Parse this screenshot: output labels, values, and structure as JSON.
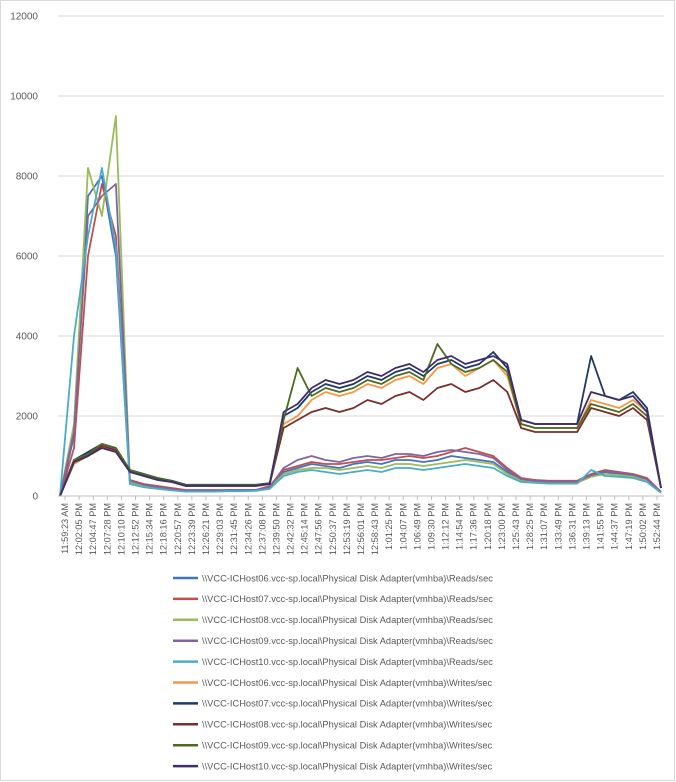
{
  "chart_data": {
    "type": "line",
    "title": "",
    "xlabel": "",
    "ylabel": "",
    "ylim": [
      0,
      12000
    ],
    "yticks": [
      0,
      2000,
      4000,
      6000,
      8000,
      10000,
      12000
    ],
    "ytick_labels": [
      "0",
      "2000",
      "4000",
      "6000",
      "8000",
      "10000",
      "12000"
    ],
    "grid": "horizontal",
    "legend_position": "bottom",
    "x_tick_labels": [
      "11:59:23 AM",
      "12:02:05 PM",
      "12:04:47 PM",
      "12:07:28 PM",
      "12:10:10 PM",
      "12:12:52 PM",
      "12:15:34 PM",
      "12:18:16 PM",
      "12:20:57 PM",
      "12:23:39 PM",
      "12:26:21 PM",
      "12:29:03 PM",
      "12:31:45 PM",
      "12:34:26 PM",
      "12:37:08 PM",
      "12:39:50 PM",
      "12:42:32 PM",
      "12:45:14 PM",
      "12:47:56 PM",
      "12:50:37 PM",
      "12:53:19 PM",
      "12:56:01 PM",
      "12:58:43 PM",
      "1:01:25 PM",
      "1:04:07 PM",
      "1:06:49 PM",
      "1:09:30 PM",
      "1:12:12 PM",
      "1:14:54 PM",
      "1:17:36 PM",
      "1:20:18 PM",
      "1:23:00 PM",
      "1:25:43 PM",
      "1:28:25 PM",
      "1:31:07 PM",
      "1:33:49 PM",
      "1:36:31 PM",
      "1:39:13 PM",
      "1:41:55 PM",
      "1:44:37 PM",
      "1:47:19 PM",
      "1:50:02 PM",
      "1:52:44 PM"
    ],
    "x_tick_indices": [
      0,
      1,
      2,
      3,
      4,
      5,
      6,
      7,
      8,
      9,
      10,
      11,
      12,
      13,
      14,
      15,
      16,
      17,
      18,
      19,
      20,
      21,
      22,
      23,
      24,
      25,
      26,
      27,
      28,
      29,
      30,
      31,
      32,
      33,
      34,
      35,
      36,
      37,
      38,
      39,
      40,
      41,
      42
    ],
    "series": [
      {
        "name": "\\\\VCC-ICHost06.vcc-sp.local\\Physical Disk Adapter(vmhba)\\Reads/sec",
        "color": "#4472c4",
        "values": [
          0,
          1500,
          7500,
          8000,
          6000,
          300,
          250,
          200,
          150,
          120,
          120,
          120,
          150,
          150,
          150,
          200,
          600,
          700,
          800,
          750,
          700,
          800,
          850,
          800,
          900,
          900,
          850,
          900,
          1000,
          950,
          900,
          850,
          600,
          400,
          400,
          350,
          350,
          350,
          500,
          600,
          550,
          500,
          400,
          100
        ]
      },
      {
        "name": "\\\\VCC-ICHost07.vcc-sp.local\\Physical Disk Adapter(vmhba)\\Reads/sec",
        "color": "#c0504d",
        "values": [
          0,
          1200,
          6000,
          7800,
          6500,
          400,
          300,
          250,
          200,
          150,
          150,
          150,
          150,
          150,
          150,
          250,
          650,
          750,
          850,
          800,
          800,
          850,
          900,
          900,
          950,
          1000,
          950,
          1000,
          1100,
          1200,
          1100,
          1000,
          700,
          450,
          400,
          380,
          380,
          380,
          550,
          650,
          600,
          550,
          450,
          100
        ]
      },
      {
        "name": "\\\\VCC-ICHost08.vcc-sp.local\\Physical Disk Adapter(vmhba)\\Reads/sec",
        "color": "#9bbb59",
        "values": [
          0,
          1800,
          8200,
          7000,
          9500,
          350,
          250,
          200,
          150,
          120,
          120,
          120,
          130,
          130,
          140,
          200,
          550,
          650,
          700,
          700,
          650,
          700,
          750,
          700,
          800,
          800,
          750,
          800,
          850,
          900,
          850,
          800,
          550,
          380,
          350,
          330,
          330,
          330,
          480,
          550,
          520,
          480,
          380,
          100
        ]
      },
      {
        "name": "\\\\VCC-ICHost09.vcc-sp.local\\Physical Disk Adapter(vmhba)\\Reads/sec",
        "color": "#8064a2",
        "values": [
          0,
          1600,
          7000,
          7500,
          7800,
          380,
          280,
          220,
          170,
          130,
          130,
          130,
          140,
          140,
          150,
          220,
          700,
          900,
          1000,
          900,
          850,
          950,
          1000,
          950,
          1050,
          1050,
          1000,
          1100,
          1150,
          1100,
          1050,
          950,
          650,
          420,
          380,
          360,
          360,
          360,
          520,
          620,
          580,
          530,
          420,
          100
        ]
      },
      {
        "name": "\\\\VCC-ICHost10.vcc-sp.local\\Physical Disk Adapter(vmhba)\\Reads/sec",
        "color": "#4bacc6",
        "values": [
          0,
          4000,
          6500,
          8200,
          6200,
          300,
          220,
          180,
          140,
          110,
          110,
          110,
          120,
          120,
          130,
          180,
          500,
          600,
          650,
          600,
          550,
          600,
          650,
          600,
          700,
          700,
          650,
          700,
          750,
          800,
          750,
          700,
          500,
          350,
          330,
          310,
          310,
          310,
          650,
          500,
          480,
          450,
          350,
          80
        ]
      },
      {
        "name": "\\\\VCC-ICHost06.vcc-sp.local\\Physical Disk Adapter(vmhba)\\Writes/sec",
        "color": "#f79646",
        "values": [
          0,
          800,
          1000,
          1200,
          1100,
          600,
          500,
          400,
          350,
          250,
          250,
          250,
          250,
          250,
          250,
          300,
          1800,
          2000,
          2400,
          2600,
          2500,
          2600,
          2800,
          2700,
          2900,
          3000,
          2800,
          3200,
          3300,
          3000,
          3200,
          3400,
          3000,
          1800,
          1700,
          1700,
          1700,
          1700,
          2400,
          2300,
          2200,
          2400,
          2100,
          200
        ]
      },
      {
        "name": "\\\\VCC-ICHost07.vcc-sp.local\\Physical Disk Adapter(vmhba)\\Writes/sec",
        "color": "#1f3864",
        "values": [
          0,
          900,
          1100,
          1300,
          1200,
          650,
          550,
          450,
          380,
          280,
          280,
          280,
          280,
          280,
          280,
          320,
          2000,
          2200,
          2600,
          2800,
          2700,
          2800,
          3000,
          2900,
          3100,
          3200,
          3000,
          3300,
          3400,
          3200,
          3300,
          3600,
          3200,
          1900,
          1800,
          1800,
          1800,
          1800,
          3500,
          2500,
          2400,
          2600,
          2200,
          200
        ]
      },
      {
        "name": "\\\\VCC-ICHost08.vcc-sp.local\\Physical Disk Adapter(vmhba)\\Writes/sec",
        "color": "#7b2c2c",
        "values": [
          0,
          850,
          1000,
          1250,
          1150,
          620,
          520,
          420,
          360,
          260,
          260,
          260,
          260,
          260,
          260,
          300,
          1700,
          1900,
          2100,
          2200,
          2100,
          2200,
          2400,
          2300,
          2500,
          2600,
          2400,
          2700,
          2800,
          2600,
          2700,
          2900,
          2600,
          1700,
          1600,
          1600,
          1600,
          1600,
          2200,
          2100,
          2000,
          2200,
          1900,
          200
        ]
      },
      {
        "name": "\\\\VCC-ICHost09.vcc-sp.local\\Physical Disk Adapter(vmhba)\\Writes/sec",
        "color": "#4e6b1e",
        "values": [
          0,
          900,
          1050,
          1300,
          1200,
          640,
          540,
          440,
          370,
          270,
          270,
          270,
          270,
          270,
          270,
          310,
          1900,
          3200,
          2500,
          2700,
          2600,
          2700,
          2900,
          2800,
          3000,
          3100,
          2900,
          3800,
          3300,
          3100,
          3200,
          3400,
          3100,
          1800,
          1700,
          1700,
          1700,
          1700,
          2300,
          2200,
          2100,
          2300,
          2000,
          200
        ]
      },
      {
        "name": "\\\\VCC-ICHost10.vcc-sp.local\\Physical Disk Adapter(vmhba)\\Writes/sec",
        "color": "#3f2d6e",
        "values": [
          0,
          850,
          1000,
          1200,
          1100,
          600,
          500,
          400,
          350,
          250,
          250,
          250,
          250,
          250,
          250,
          300,
          2100,
          2300,
          2700,
          2900,
          2800,
          2900,
          3100,
          3000,
          3200,
          3300,
          3100,
          3400,
          3500,
          3300,
          3400,
          3500,
          3300,
          1900,
          1800,
          1800,
          1800,
          1800,
          2600,
          2500,
          2400,
          2500,
          2100,
          200
        ]
      }
    ]
  }
}
